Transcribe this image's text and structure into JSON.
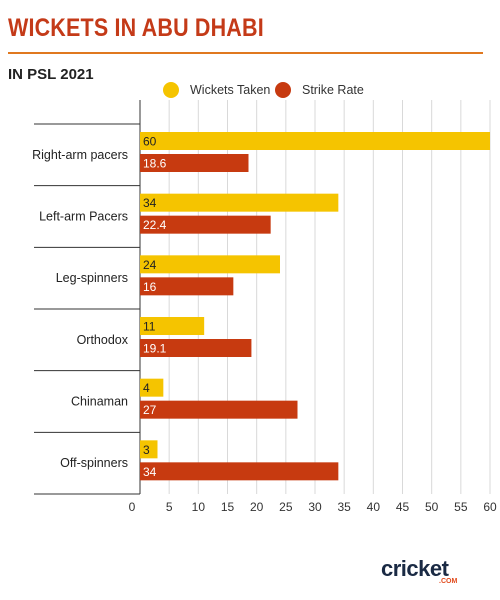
{
  "header": {
    "title": "WICKETS IN ABU DHABI",
    "subtitle": "IN PSL 2021"
  },
  "colors": {
    "wickets": "#f5c400",
    "strike_rate": "#c73a10",
    "title": "#c43a18",
    "rule": "#e0781f"
  },
  "chart_data": {
    "type": "bar",
    "orientation": "horizontal",
    "categories": [
      "Right-arm pacers",
      "Left-arm Pacers",
      "Leg-spinners",
      "Orthodox",
      "Chinaman",
      "Off-spinners"
    ],
    "series": [
      {
        "name": "Wickets Taken",
        "values": [
          60,
          34,
          24,
          11,
          4,
          3
        ],
        "labels": [
          "60",
          "34",
          "24",
          "11",
          "4",
          "3"
        ]
      },
      {
        "name": "Strike Rate",
        "values": [
          18.6,
          22.4,
          16,
          19.1,
          27,
          34
        ],
        "labels": [
          "18.6",
          "22.4",
          "16",
          "19.1",
          "27",
          "34"
        ]
      }
    ],
    "xlim": [
      0,
      60
    ],
    "x_ticks": [
      "0",
      "5",
      "10",
      "15",
      "20",
      "25",
      "30",
      "35",
      "40",
      "45",
      "50",
      "55",
      "60"
    ],
    "legend_position": "top",
    "grid": "vertical"
  },
  "logo": {
    "main": "cricket",
    "sub": ".COM"
  }
}
